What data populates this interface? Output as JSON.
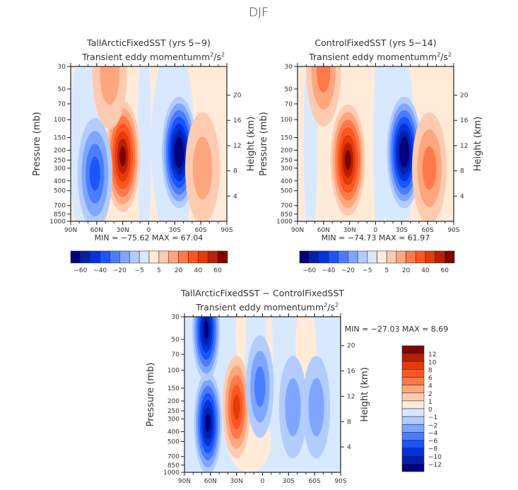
{
  "chart_data": {
    "type": "heatmap",
    "title": "DJF",
    "panels": [
      {
        "id": "tallarctic",
        "title": "TallArcticFixedSST (yrs 5-9)",
        "variable": "Transient eddy momentum",
        "units_base": "m",
        "units_exp1": "2",
        "units_slash": "/s",
        "units_exp2": "2",
        "xlabel": "",
        "ylabel": "Pressure (mb)",
        "ylabel_right": "Height (km)",
        "x_ticks": [
          "90N",
          "60N",
          "30N",
          "0",
          "30S",
          "60S",
          "90S"
        ],
        "y_ticks": [
          "30",
          "50",
          "70",
          "100",
          "150",
          "200",
          "250",
          "300",
          "400",
          "500",
          "700",
          "850",
          "1000"
        ],
        "y_ticks_right": [
          "20",
          "16",
          "12",
          "8",
          "4"
        ],
        "min_label": "MIN = -75.62",
        "max_label": "MAX = 67.04",
        "min": -75.62,
        "max": 67.04,
        "features": [
          {
            "lat": 30,
            "p": 230,
            "sign": "pos",
            "peak": 67
          },
          {
            "lat": -35,
            "p": 210,
            "sign": "neg",
            "peak": -75
          },
          {
            "lat": 62,
            "p": 340,
            "sign": "neg",
            "peak": -30
          },
          {
            "lat": -62,
            "p": 300,
            "sign": "pos",
            "peak": 15
          },
          {
            "lat": 45,
            "p": 35,
            "sign": "pos",
            "peak": 10
          }
        ]
      },
      {
        "id": "control",
        "title": "ControlFixedSST (yrs 5-14)",
        "variable": "Transient eddy momentum",
        "units_base": "m",
        "units_exp1": "2",
        "units_slash": "/s",
        "units_exp2": "2",
        "xlabel": "",
        "ylabel": "Pressure (mb)",
        "ylabel_right": "Height (km)",
        "x_ticks": [
          "90N",
          "60N",
          "30N",
          "0",
          "30S",
          "60S",
          "90S"
        ],
        "y_ticks": [
          "30",
          "50",
          "70",
          "100",
          "150",
          "200",
          "250",
          "300",
          "400",
          "500",
          "700",
          "850",
          "1000"
        ],
        "y_ticks_right": [
          "20",
          "16",
          "12",
          "8",
          "4"
        ],
        "min_label": "MIN = -74.73",
        "max_label": "MAX = 61.97",
        "min": -74.73,
        "max": 61.97,
        "features": [
          {
            "lat": 32,
            "p": 250,
            "sign": "pos",
            "peak": 62
          },
          {
            "lat": -33,
            "p": 210,
            "sign": "neg",
            "peak": -74
          },
          {
            "lat": -62,
            "p": 300,
            "sign": "pos",
            "peak": 25
          },
          {
            "lat": 60,
            "p": 33,
            "sign": "pos",
            "peak": 25
          }
        ]
      },
      {
        "id": "difference",
        "title": "TallArcticFixedSST - ControlFixedSST",
        "variable": "Transient eddy momentum",
        "units_base": "m",
        "units_exp1": "2",
        "units_slash": "/s",
        "units_exp2": "2",
        "xlabel": "",
        "ylabel": "Pressure (mb)",
        "ylabel_right": "Height (km)",
        "x_ticks": [
          "90N",
          "60N",
          "30N",
          "0",
          "30S",
          "60S",
          "90S"
        ],
        "y_ticks": [
          "30",
          "50",
          "70",
          "100",
          "150",
          "200",
          "250",
          "300",
          "400",
          "500",
          "700",
          "850",
          "1000"
        ],
        "y_ticks_right": [
          "20",
          "16",
          "12",
          "8",
          "4"
        ],
        "min_label": "MIN = -27.03",
        "max_label": "MAX =   8.69",
        "min": -27.03,
        "max": 8.69,
        "features": [
          {
            "lat": 63,
            "p": 330,
            "sign": "neg",
            "peak": -27
          },
          {
            "lat": 65,
            "p": 40,
            "sign": "neg",
            "peak": -20
          },
          {
            "lat": 30,
            "p": 230,
            "sign": "pos",
            "peak": 8.7
          },
          {
            "lat": 3,
            "p": 145,
            "sign": "neg",
            "peak": -5
          },
          {
            "lat": -35,
            "p": 230,
            "sign": "neg",
            "peak": -3
          },
          {
            "lat": -62,
            "p": 230,
            "sign": "neg",
            "peak": -3
          }
        ]
      }
    ],
    "colorbars": [
      {
        "panel": "tallarctic",
        "orientation": "horizontal",
        "levels": [
          -70,
          -60,
          -50,
          -40,
          -30,
          -20,
          -10,
          -5,
          0,
          5,
          10,
          20,
          30,
          40,
          50,
          60,
          70
        ],
        "tick_labels": [
          "-60",
          "-40",
          "-20",
          "-5",
          "5",
          "20",
          "40",
          "60"
        ]
      },
      {
        "panel": "control",
        "orientation": "horizontal",
        "levels": [
          -70,
          -60,
          -50,
          -40,
          -30,
          -20,
          -10,
          -5,
          0,
          5,
          10,
          20,
          30,
          40,
          50,
          60,
          70
        ],
        "tick_labels": [
          "-60",
          "-40",
          "-20",
          "-5",
          "5",
          "20",
          "40",
          "60"
        ]
      },
      {
        "panel": "difference",
        "orientation": "vertical",
        "levels": [
          -12,
          -10,
          -8,
          -6,
          -4,
          -2,
          -1,
          0,
          1,
          2,
          4,
          6,
          8,
          10,
          12
        ],
        "tick_labels": [
          "12",
          "10",
          "8",
          "6",
          "4",
          "2",
          "1",
          "0",
          "-1",
          "-2",
          "-4",
          "-6",
          "-8",
          "-10",
          "-12"
        ]
      }
    ],
    "colors": [
      "#00007f",
      "#0020a8",
      "#0033dd",
      "#1a55ff",
      "#4a7cff",
      "#7fa6ff",
      "#b2ccff",
      "#d8e8ff",
      "#ffebd8",
      "#ffcbb0",
      "#ffa67f",
      "#ff7a48",
      "#ff5520",
      "#e63a08",
      "#b82000",
      "#800000"
    ]
  }
}
